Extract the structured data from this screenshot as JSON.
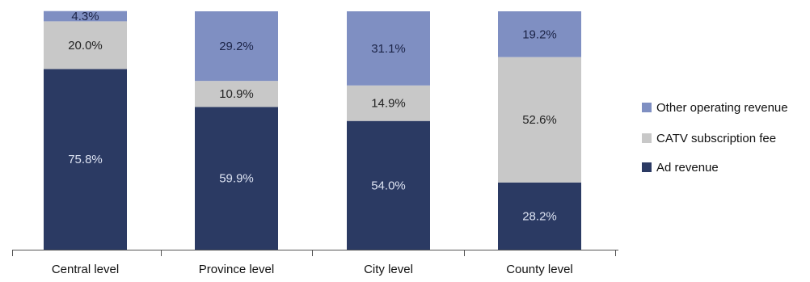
{
  "chart_data": {
    "type": "bar",
    "stacked": true,
    "percent": true,
    "categories": [
      "Central level",
      "Province level",
      "City level",
      "County level"
    ],
    "series": [
      {
        "name": "Ad revenue",
        "values": [
          75.8,
          59.9,
          54.0,
          28.2
        ],
        "labels": [
          "75.8%",
          "59.9%",
          "54.0%",
          "28.2%"
        ],
        "color": "#2b3a63",
        "label_color": "#dde3f2"
      },
      {
        "name": "CATV subscription fee",
        "values": [
          20.0,
          10.9,
          14.9,
          52.6
        ],
        "labels": [
          "20.0%",
          "10.9%",
          "14.9%",
          "52.6%"
        ],
        "color": "#c8c8c8",
        "label_color": "#222222"
      },
      {
        "name": "Other operating revenue",
        "values": [
          4.3,
          29.2,
          31.1,
          19.2
        ],
        "labels": [
          "4.3%",
          "29.2%",
          "31.1%",
          "19.2%"
        ],
        "color": "#7f8fc2",
        "label_color": "#1c2447"
      }
    ],
    "legend_order": [
      "Other operating revenue",
      "CATV subscription fee",
      "Ad revenue"
    ],
    "legend_position": "right",
    "ylim": [
      0,
      100
    ],
    "grid": false
  }
}
